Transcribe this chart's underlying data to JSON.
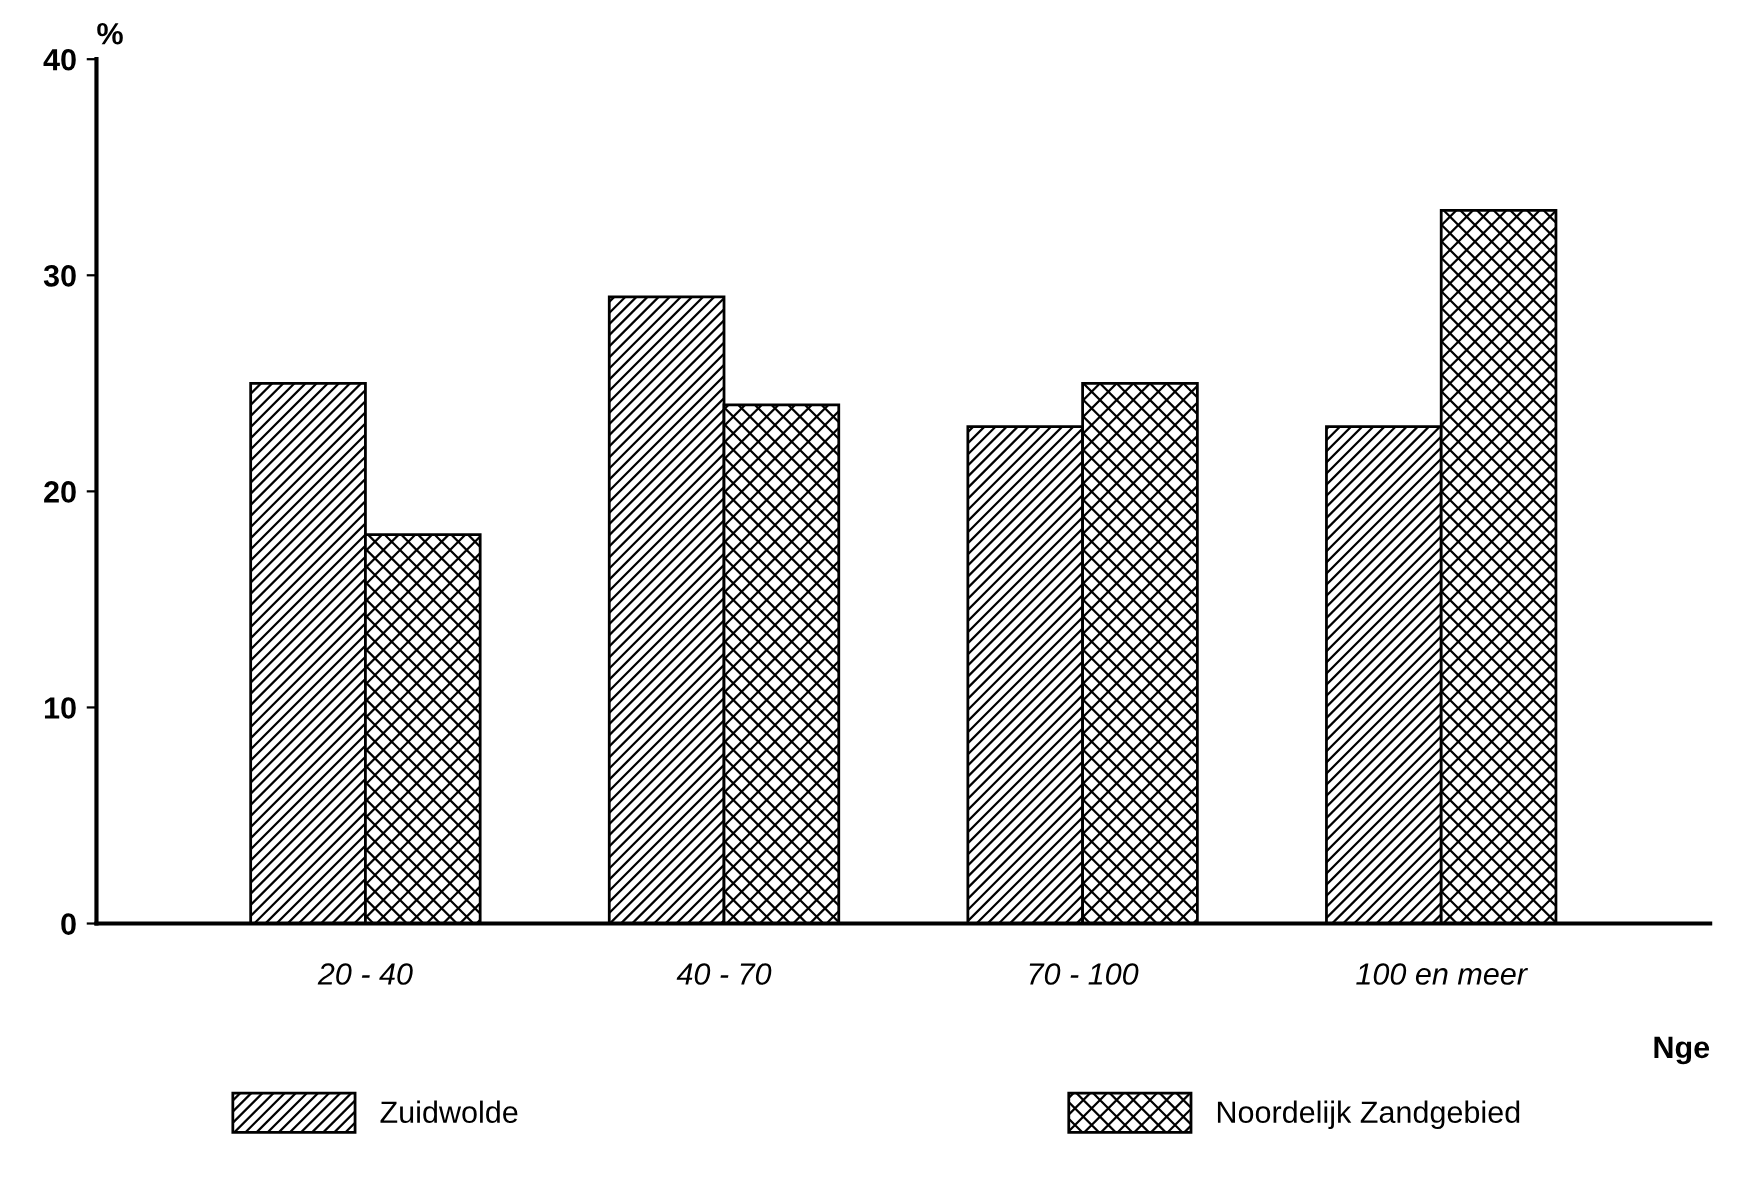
{
  "chart_data": {
    "type": "bar",
    "ylabel": "%",
    "xlabel": "Nge",
    "categories": [
      "20 - 40",
      "40 - 70",
      "70 - 100",
      "100 en meer"
    ],
    "series": [
      {
        "name": "Zuidwolde",
        "color": "#000000",
        "values": [
          25,
          29,
          23,
          23
        ]
      },
      {
        "name": "Noordelijk Zandgebied",
        "color": "#000000",
        "values": [
          18,
          24,
          25,
          33
        ]
      }
    ],
    "ylim": [
      0,
      40
    ],
    "yticks": [
      0,
      10,
      20,
      30,
      40
    ],
    "grid": false,
    "legend": "bottom"
  }
}
